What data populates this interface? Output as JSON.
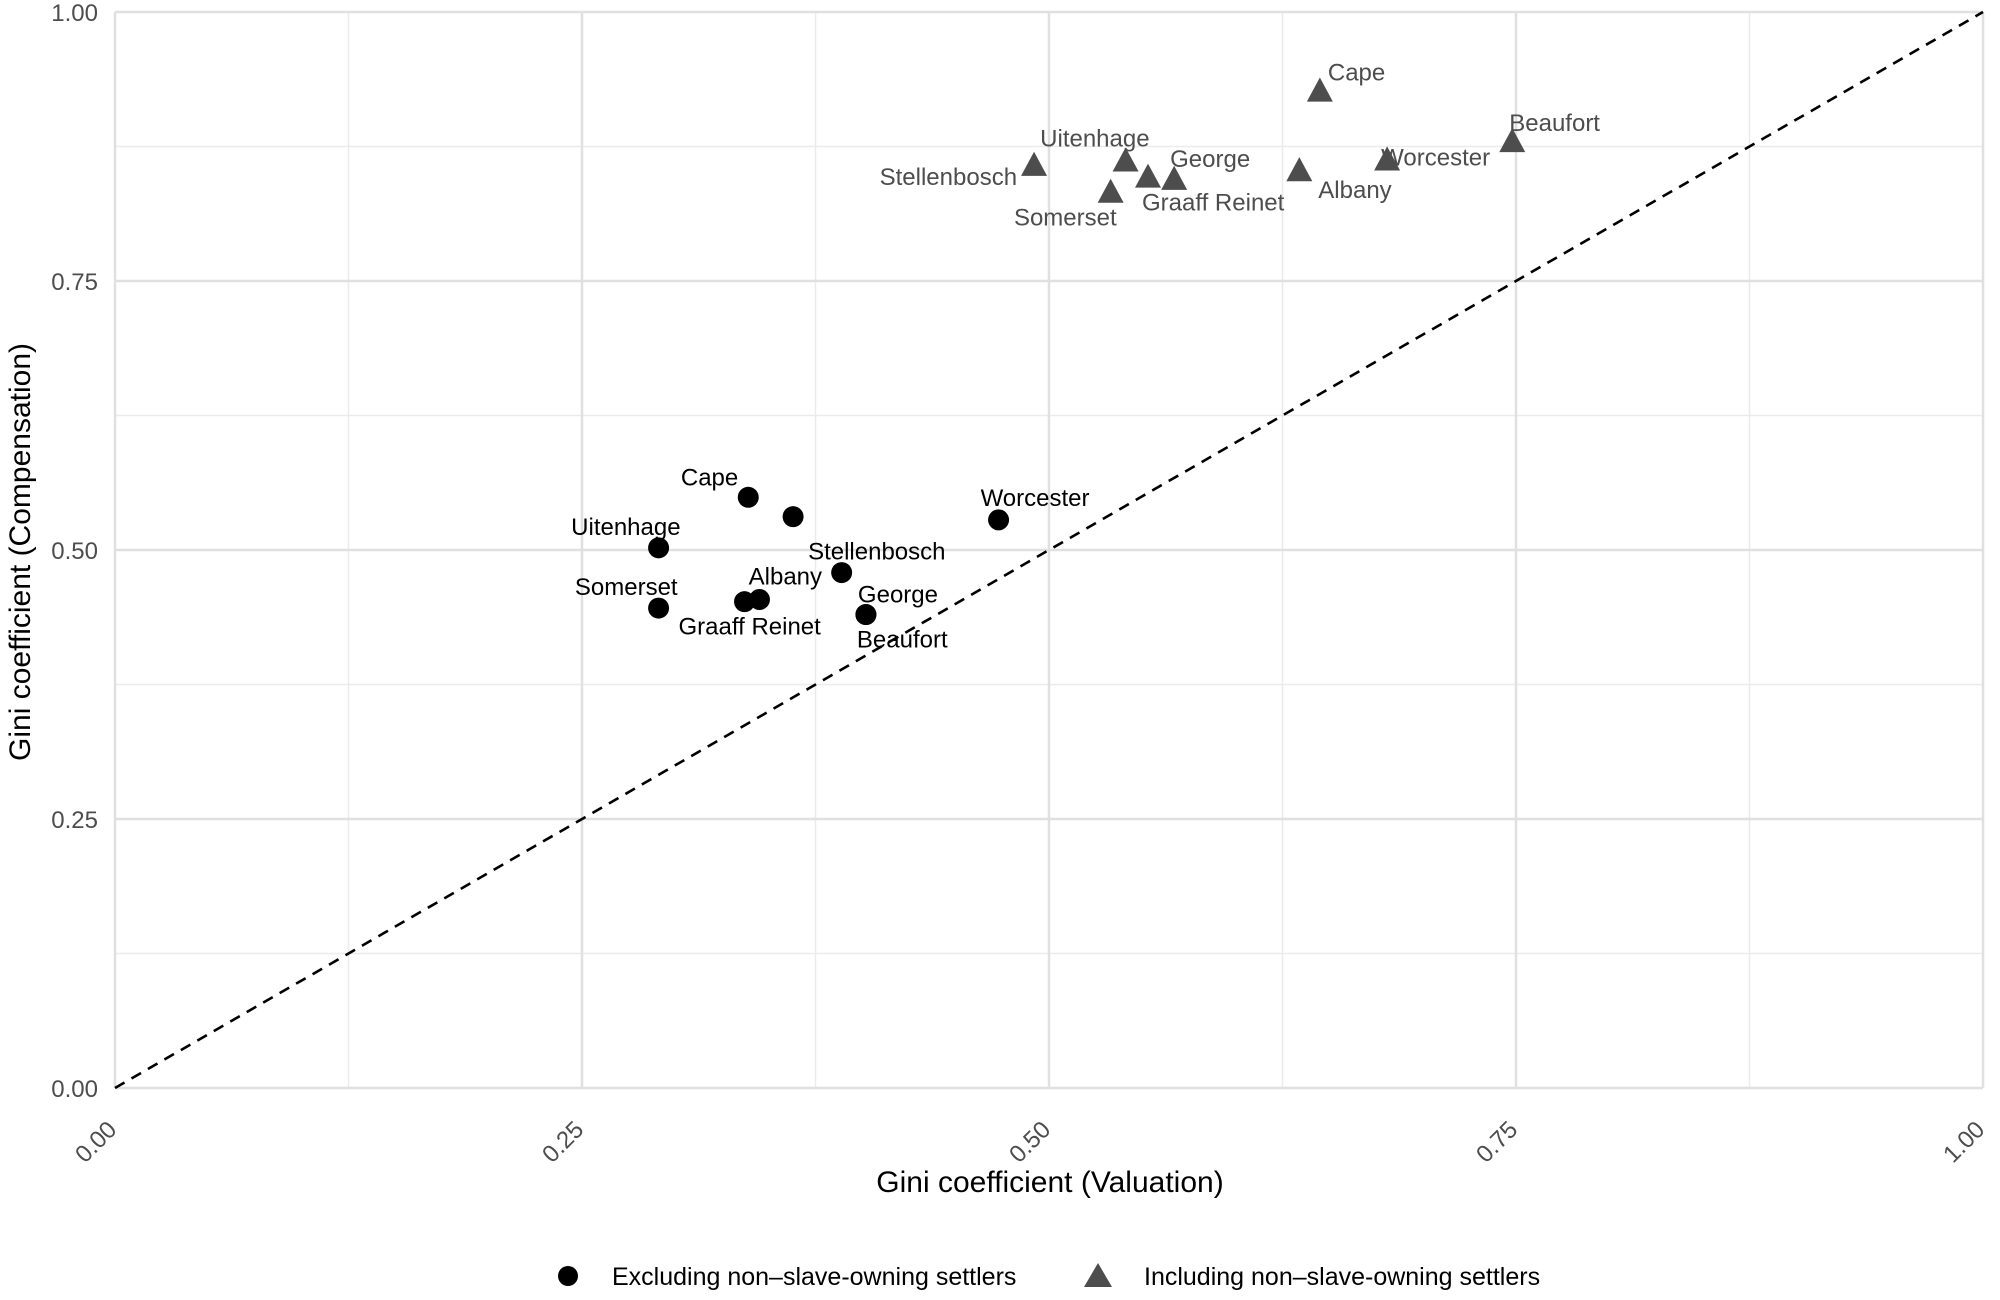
{
  "chart_data": {
    "type": "scatter",
    "title": "",
    "xlabel": "Gini coefficient (Valuation)",
    "ylabel": "Gini coefficient (Compensation)",
    "xlim": [
      0,
      1
    ],
    "ylim": [
      0,
      1
    ],
    "x_ticks": [
      0.0,
      0.25,
      0.5,
      0.75,
      1.0
    ],
    "y_ticks": [
      0.0,
      0.25,
      0.5,
      0.75,
      1.0
    ],
    "x_tick_labels": [
      "0.00",
      "0.25",
      "0.50",
      "0.75",
      "1.00"
    ],
    "y_tick_labels": [
      "0.00",
      "0.25",
      "0.50",
      "0.75",
      "1.00"
    ],
    "grid": true,
    "legend_position": "bottom",
    "reference_line": {
      "type": "diagonal",
      "style": "dashed",
      "from": [
        0,
        0
      ],
      "to": [
        1,
        1
      ]
    },
    "series": [
      {
        "name": "Excluding non–slave-owning settlers",
        "marker": "circle",
        "color": "#000000",
        "label_color": "#000000",
        "points": [
          {
            "label": "Cape",
            "x": 0.339,
            "y": 0.549,
            "label_dir": "upper-left"
          },
          {
            "label": "Stellenbosch",
            "x": 0.363,
            "y": 0.531,
            "label_dir": "lower-right"
          },
          {
            "label": "Uitenhage",
            "x": 0.291,
            "y": 0.502,
            "label_dir": "upper-left"
          },
          {
            "label": "Worcester",
            "x": 0.473,
            "y": 0.528,
            "label_dir": "upper-right"
          },
          {
            "label": "Albany",
            "x": 0.389,
            "y": 0.479,
            "label_dir": "left"
          },
          {
            "label": "Somerset",
            "x": 0.291,
            "y": 0.446,
            "label_dir": "upper-left"
          },
          {
            "label": "Graaff Reinet",
            "x": 0.337,
            "y": 0.452,
            "label_dir": "lower-left"
          },
          {
            "label": "",
            "x": 0.345,
            "y": 0.454,
            "label_dir": "none"
          },
          {
            "label": "George",
            "x": 0.402,
            "y": 0.44,
            "label_dir": "upper-right"
          },
          {
            "label": "Beaufort",
            "x": 0.402,
            "y": 0.44,
            "label_dir": "lower-right"
          }
        ]
      },
      {
        "name": "Including non–slave-owning settlers",
        "marker": "triangle",
        "color": "#4d4d4d",
        "label_color": "#4d4d4d",
        "points": [
          {
            "label": "Cape",
            "x": 0.645,
            "y": 0.927,
            "label_dir": "upper-right"
          },
          {
            "label": "Beaufort",
            "x": 0.748,
            "y": 0.88,
            "label_dir": "upper-right"
          },
          {
            "label": "Worcester",
            "x": 0.681,
            "y": 0.863,
            "label_dir": "upper-left"
          },
          {
            "label": "Uitenhage",
            "x": 0.541,
            "y": 0.862,
            "label_dir": "upper-left"
          },
          {
            "label": "Stellenbosch",
            "x": 0.492,
            "y": 0.858,
            "label_dir": "lower-left"
          },
          {
            "label": "George",
            "x": 0.567,
            "y": 0.845,
            "label_dir": "upper-right"
          },
          {
            "label": "Graaff Reinet",
            "x": 0.553,
            "y": 0.847,
            "label_dir": "lower-right"
          },
          {
            "label": "Albany",
            "x": 0.634,
            "y": 0.853,
            "label_dir": "lower-right"
          },
          {
            "label": "Somerset",
            "x": 0.533,
            "y": 0.833,
            "label_dir": "lower-left"
          }
        ]
      }
    ]
  }
}
